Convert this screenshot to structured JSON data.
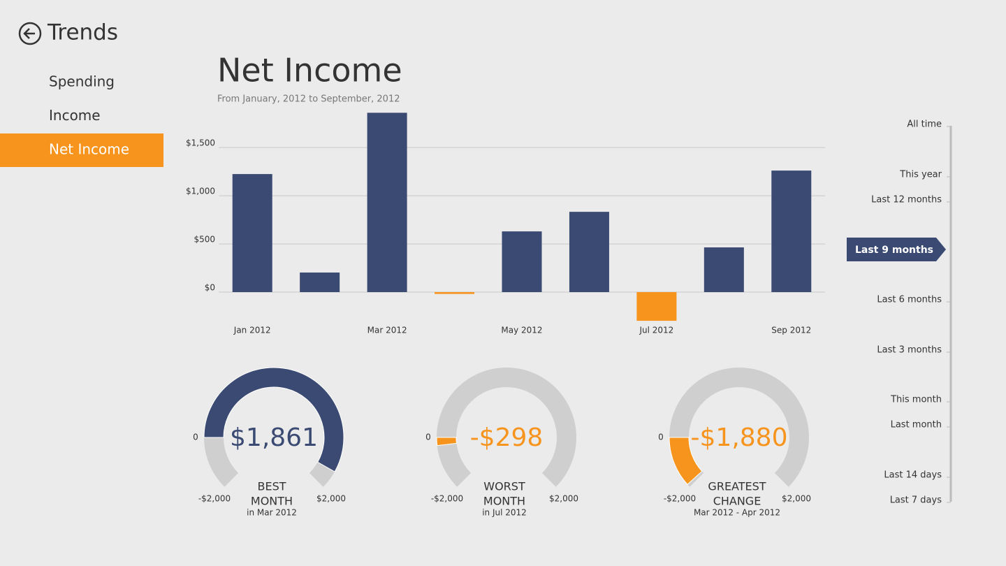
{
  "header": {
    "title": "Trends"
  },
  "nav": [
    {
      "label": "Spending",
      "selected": false
    },
    {
      "label": "Income",
      "selected": false
    },
    {
      "label": "Net Income",
      "selected": true
    }
  ],
  "chart_data": {
    "type": "bar",
    "title": "Net Income",
    "subtitle": "From January, 2012 to September, 2012",
    "categories": [
      "Jan 2012",
      null,
      "Mar 2012",
      null,
      "May 2012",
      null,
      "Jul 2012",
      null,
      "Sep 2012"
    ],
    "values": [
      1225,
      203,
      1861,
      -19,
      630,
      833,
      -298,
      464,
      1261
    ],
    "positive_color": "#3a4a72",
    "negative_color": "#f7941d",
    "ylim": [
      -300,
      1900
    ],
    "yticks": [
      {
        "value": 0,
        "label": "$0"
      },
      {
        "value": 500,
        "label": "$500"
      },
      {
        "value": 1000,
        "label": "$1,000"
      },
      {
        "value": 1500,
        "label": "$1,500"
      }
    ],
    "grid": true
  },
  "gauges": [
    {
      "value": 1861,
      "value_label": "$1,861",
      "title_lines": [
        "BEST",
        "MONTH"
      ],
      "caption": "in Mar 2012",
      "color": "#3a4a72",
      "min": -2000,
      "min_label": "-$2,000",
      "max": 2000,
      "max_label": "$2,000",
      "zero": 0
    },
    {
      "value": -298,
      "value_label": "-$298",
      "title_lines": [
        "WORST",
        "MONTH"
      ],
      "caption": "in Jul 2012",
      "color": "#f7941d",
      "min": -2000,
      "min_label": "-$2,000",
      "max": 2000,
      "max_label": "$2,000",
      "zero": 0
    },
    {
      "value": -1880,
      "value_label": "-$1,880",
      "title_lines": [
        "GREATEST",
        "CHANGE"
      ],
      "caption": "Mar 2012 - Apr 2012",
      "color": "#f7941d",
      "min": -2000,
      "min_label": "-$2,000",
      "max": 2000,
      "max_label": "$2,000",
      "zero": 0
    }
  ],
  "range_options": [
    {
      "label": "All time",
      "selected": false
    },
    {
      "label": "This year",
      "selected": false
    },
    {
      "label": "Last 12 months",
      "selected": false
    },
    {
      "label": "Last 9 months",
      "selected": true
    },
    {
      "label": "Last 6 months",
      "selected": false
    },
    {
      "label": "Last 3 months",
      "selected": false
    },
    {
      "label": "This month",
      "selected": false
    },
    {
      "label": "Last month",
      "selected": false
    },
    {
      "label": "Last 14 days",
      "selected": false
    },
    {
      "label": "Last 7 days",
      "selected": false
    }
  ]
}
